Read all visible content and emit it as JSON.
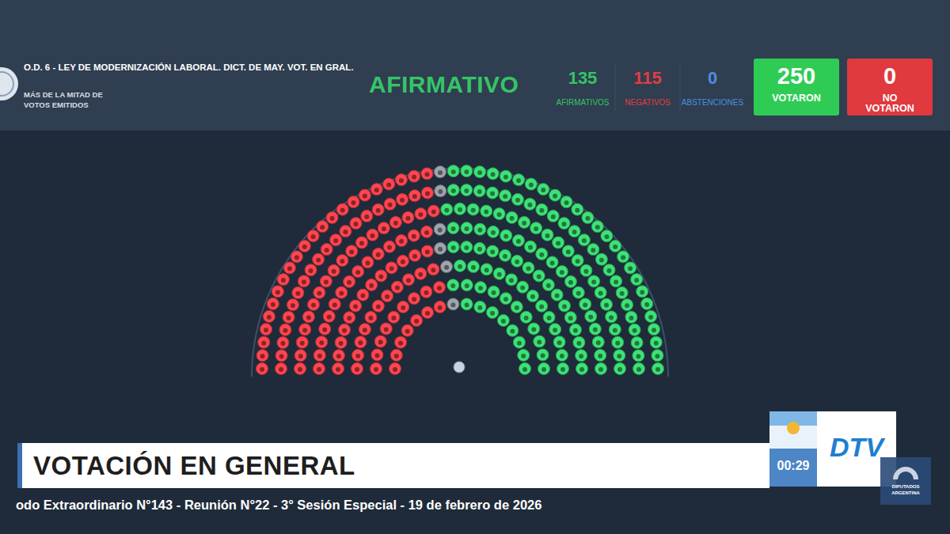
{
  "header": {
    "title": "O.D. 6 - LEY DE MODERNIZACIÓN LABORAL. DICT. DE MAY. VOT. EN GRAL.",
    "rule": "MÁS DE LA MITAD DE VOTOS EMITIDOS",
    "result": "AFIRMATIVO",
    "voted": {
      "value": 250,
      "label": "VOTARON"
    },
    "not_voted": {
      "value": 0,
      "label": "NO VOTARON"
    }
  },
  "chart_data": {
    "type": "parliament",
    "categories": [
      "AFIRMATIVOS",
      "NEGATIVOS",
      "ABSTENCIONES"
    ],
    "values": [
      135,
      115,
      0
    ],
    "colors": [
      "#35c467",
      "#e23c45",
      "#4a8fe0"
    ],
    "empty_seats": 6,
    "data_labels": true
  },
  "footer": {
    "banner": "VOTACIÓN EN GENERAL",
    "timer": "00:29",
    "channel": "DTV",
    "logo": "DIPUTADOS ARGENTINA",
    "ticker": "odo Extraordinario N°143 - Reunión N°22 - 3° Sesión Especial - 19 de febrero de 2026"
  }
}
